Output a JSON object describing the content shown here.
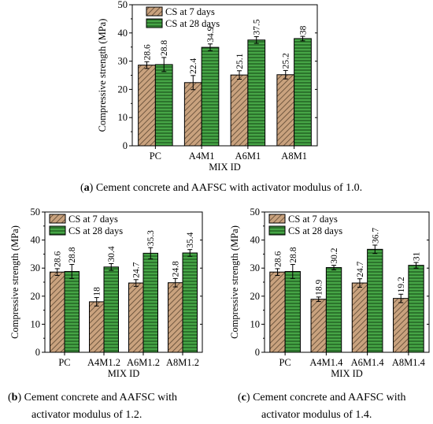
{
  "legend_labels": [
    "CS at 7 days",
    "CS at 28 days"
  ],
  "colors": {
    "series7": "#c9a27e",
    "series28": "#46a546",
    "hatch7": "#5a4530",
    "hatch28": "#1e5a1e",
    "stroke": "#000000"
  },
  "captions": [
    {
      "tag": "a",
      "text": "Cement concrete and AAFSC with activator modulus of 1.0."
    },
    {
      "tag": "b",
      "text": "Cement concrete and AAFSC with",
      "text2": "activator modulus of 1.2."
    },
    {
      "tag": "c",
      "text": "Cement concrete and AAFSC with",
      "text2": "activator modulus of 1.4."
    }
  ],
  "chart_data": [
    {
      "type": "bar",
      "xlabel": "MIX ID",
      "ylabel": "Compressive strength (MPa)",
      "ylim": [
        0,
        50
      ],
      "yticks": [
        0,
        10,
        20,
        30,
        40,
        50
      ],
      "legend": "top-left",
      "categories": [
        "PC",
        "A4M1",
        "A6M1",
        "A8M1"
      ],
      "series": [
        {
          "name": "CS at 7 days",
          "values": [
            28.6,
            22.4,
            25.1,
            25.2
          ],
          "errors": [
            1.2,
            2.5,
            1.5,
            1.5
          ]
        },
        {
          "name": "CS at 28 days",
          "values": [
            28.8,
            34.9,
            37.5,
            38
          ],
          "errors": [
            2.5,
            1.2,
            1.2,
            0.8
          ]
        }
      ],
      "labels": [
        [
          "28.6",
          "22.4",
          "25.1",
          "25.2"
        ],
        [
          "28.8",
          "34.9",
          "37.5",
          "38"
        ]
      ]
    },
    {
      "type": "bar",
      "xlabel": "MIX ID",
      "ylabel": "Compressive strength (MPa)",
      "ylim": [
        0,
        50
      ],
      "yticks": [
        0,
        10,
        20,
        30,
        40,
        50
      ],
      "legend": "top-left",
      "categories": [
        "PC",
        "A4M1.2",
        "A6M1.2",
        "A8M1.2"
      ],
      "series": [
        {
          "name": "CS at 7 days",
          "values": [
            28.6,
            18,
            24.7,
            24.8
          ],
          "errors": [
            1.2,
            1.5,
            1.2,
            1.5
          ]
        },
        {
          "name": "CS at 28 days",
          "values": [
            28.8,
            30.4,
            35.3,
            35.4
          ],
          "errors": [
            2.5,
            1.2,
            2.0,
            1.2
          ]
        }
      ],
      "labels": [
        [
          "28.6",
          "18",
          "24.7",
          "24.8"
        ],
        [
          "28.8",
          "30.4",
          "35.3",
          "35.4"
        ]
      ]
    },
    {
      "type": "bar",
      "xlabel": "MIX ID",
      "ylabel": "Compressive strength (MPa)",
      "ylim": [
        0,
        50
      ],
      "yticks": [
        0,
        10,
        20,
        30,
        40,
        50
      ],
      "legend": "top-left",
      "categories": [
        "PC",
        "A4M1.4",
        "A6M1.4",
        "A8M1.4"
      ],
      "series": [
        {
          "name": "CS at 7 days",
          "values": [
            28.6,
            18.9,
            24.7,
            19.2
          ],
          "errors": [
            1.2,
            0.8,
            1.5,
            1.5
          ]
        },
        {
          "name": "CS at 28 days",
          "values": [
            28.8,
            30.2,
            36.7,
            31
          ],
          "errors": [
            2.5,
            0.8,
            1.5,
            1.0
          ]
        }
      ],
      "labels": [
        [
          "28.6",
          "18.9",
          "24.7",
          "19.2"
        ],
        [
          "28.8",
          "30.2",
          "36.7",
          "31"
        ]
      ]
    }
  ]
}
